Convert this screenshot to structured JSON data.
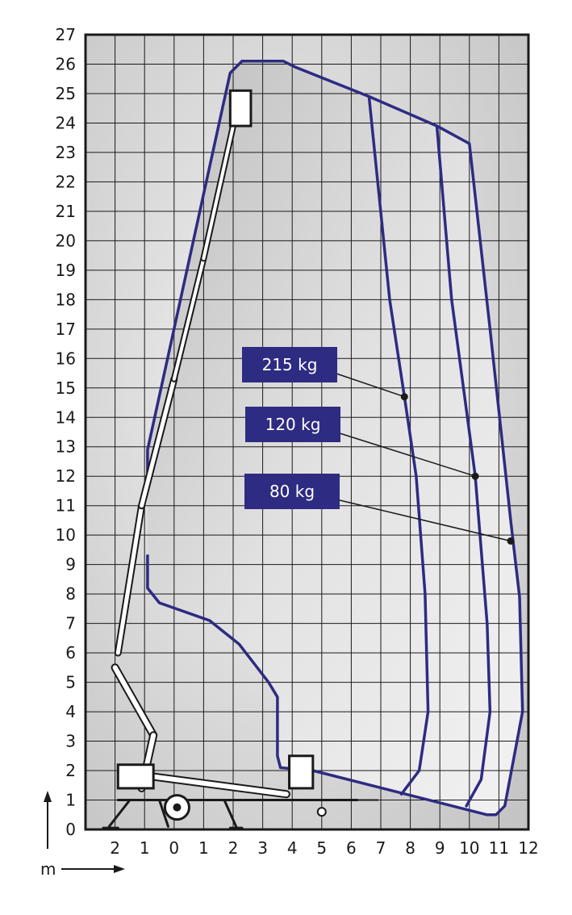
{
  "chart_data": {
    "type": "line",
    "title": "",
    "xlabel": "m",
    "ylabel": "",
    "x_ticks": [
      "2",
      "1",
      "0",
      "1",
      "2",
      "3",
      "4",
      "5",
      "6",
      "7",
      "8",
      "9",
      "10",
      "11",
      "12"
    ],
    "y_ticks": [
      "0",
      "1",
      "2",
      "3",
      "4",
      "5",
      "6",
      "7",
      "8",
      "9",
      "10",
      "11",
      "12",
      "13",
      "14",
      "15",
      "16",
      "17",
      "18",
      "19",
      "20",
      "21",
      "22",
      "23",
      "24",
      "25",
      "26",
      "27"
    ],
    "xlim": [
      -3,
      12
    ],
    "ylim": [
      0,
      27
    ],
    "grid": true,
    "outer_envelope": [
      [
        -0.9,
        11.5
      ],
      [
        -0.9,
        12.9
      ],
      [
        1.9,
        25.7
      ],
      [
        2.3,
        26.1
      ],
      [
        3.7,
        26.1
      ],
      [
        4.1,
        25.9
      ],
      [
        6.6,
        24.9
      ],
      [
        8.9,
        23.9
      ],
      [
        10.0,
        23.3
      ],
      [
        10.7,
        17.0
      ],
      [
        11.4,
        10.5
      ],
      [
        11.7,
        7.9
      ],
      [
        11.8,
        4.0
      ],
      [
        11.2,
        0.8
      ],
      [
        10.9,
        0.5
      ],
      [
        10.6,
        0.5
      ],
      [
        4.7,
        2.0
      ],
      [
        3.6,
        2.1
      ],
      [
        3.5,
        2.5
      ],
      [
        3.5,
        4.5
      ],
      [
        3.2,
        5.0
      ],
      [
        2.2,
        6.3
      ],
      [
        1.2,
        7.1
      ],
      [
        -0.5,
        7.7
      ],
      [
        -0.9,
        8.2
      ],
      [
        -0.9,
        9.3
      ]
    ],
    "series": [
      {
        "name": "215 kg",
        "points": [
          [
            6.6,
            24.9
          ],
          [
            7.3,
            18.0
          ],
          [
            7.8,
            14.7
          ],
          [
            8.2,
            12.0
          ],
          [
            8.5,
            8.0
          ],
          [
            8.6,
            4.0
          ],
          [
            8.3,
            2.0
          ],
          [
            7.7,
            1.2
          ]
        ]
      },
      {
        "name": "120 kg",
        "points": [
          [
            8.9,
            23.9
          ],
          [
            9.4,
            18.0
          ],
          [
            10.2,
            12.0
          ],
          [
            10.6,
            7.0
          ],
          [
            10.7,
            4.0
          ],
          [
            10.4,
            1.7
          ],
          [
            9.9,
            0.8
          ]
        ]
      },
      {
        "name": "80 kg",
        "points": [
          [
            10.0,
            23.3
          ],
          [
            10.7,
            17.0
          ],
          [
            11.4,
            10.5
          ],
          [
            11.7,
            7.9
          ],
          [
            11.8,
            4.0
          ],
          [
            11.2,
            0.8
          ],
          [
            10.9,
            0.5
          ]
        ]
      }
    ],
    "labels": [
      {
        "text": "215 kg",
        "marker": [
          7.8,
          14.7
        ]
      },
      {
        "text": "120 kg",
        "marker": [
          10.2,
          12.0
        ]
      },
      {
        "text": "80 kg",
        "marker": [
          11.4,
          9.8
        ]
      }
    ],
    "colors": {
      "envelope": "#2e2b82",
      "label_box": "#2e2b82",
      "label_text": "#ffffff",
      "grid": "#1a1a1a",
      "fill_light": "#f2f2f2",
      "fill_dark": "#c6c6c6",
      "lift": "#1a1a1a"
    }
  }
}
